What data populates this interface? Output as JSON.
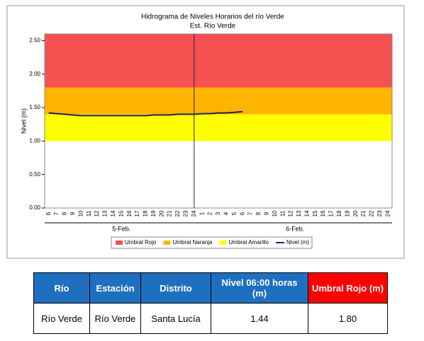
{
  "chart_data": {
    "type": "line",
    "title": "Hidrograma de Niveles Horarios del río Verde",
    "subtitle": "Est. Río Verde",
    "y_label": "Nivel (m)",
    "categories": [
      "6",
      "7",
      "8",
      "9",
      "10",
      "11",
      "12",
      "13",
      "14",
      "15",
      "16",
      "17",
      "18",
      "19",
      "20",
      "21",
      "22",
      "23",
      "24",
      "1",
      "2",
      "3",
      "4",
      "5",
      "6",
      "7",
      "8",
      "9",
      "10",
      "11",
      "12",
      "13",
      "14",
      "15",
      "16",
      "17",
      "18",
      "19",
      "20",
      "21",
      "22",
      "23",
      "24"
    ],
    "day_labels": [
      "5-Feb.",
      "6-Feb."
    ],
    "bands": [
      {
        "name": "Umbral Rojo",
        "color": "#f55150",
        "value": 1.8
      },
      {
        "name": "Umbral Naranja",
        "color": "#ffb400",
        "value": 1.4
      },
      {
        "name": "Umbral Amarillo",
        "color": "#ffff00",
        "value": 1.0
      }
    ],
    "series": [
      {
        "name": "Nivel (m)",
        "color": "#1f2060",
        "values": [
          1.42,
          1.41,
          1.4,
          1.39,
          1.38,
          1.38,
          1.38,
          1.38,
          1.38,
          1.38,
          1.38,
          1.38,
          1.38,
          1.39,
          1.39,
          1.39,
          1.4,
          1.4,
          1.4,
          1.41,
          1.41,
          1.42,
          1.42,
          1.43,
          1.44,
          null,
          null,
          null,
          null,
          null,
          null,
          null,
          null,
          null,
          null,
          null,
          null,
          null,
          null,
          null,
          null,
          null,
          null
        ]
      }
    ],
    "ylim": [
      0,
      2.6
    ],
    "yticks": [
      {
        "value": 0,
        "label": "0.00"
      },
      {
        "value": 0.5,
        "label": "0.50"
      },
      {
        "value": 1,
        "label": "1.00"
      },
      {
        "value": 1.5,
        "label": "1.50"
      },
      {
        "value": 2,
        "label": "2.00"
      },
      {
        "value": 2.5,
        "label": "2.50"
      }
    ]
  },
  "table": {
    "headers": [
      "Río",
      "Estación",
      "Distrito",
      "Nivel 06:00 horas (m)",
      "Umbral Rojo (m)"
    ],
    "rows": [
      [
        "Río Verde",
        "Río Verde",
        "Santa Lucía",
        "1.44",
        "1.80"
      ]
    ]
  }
}
